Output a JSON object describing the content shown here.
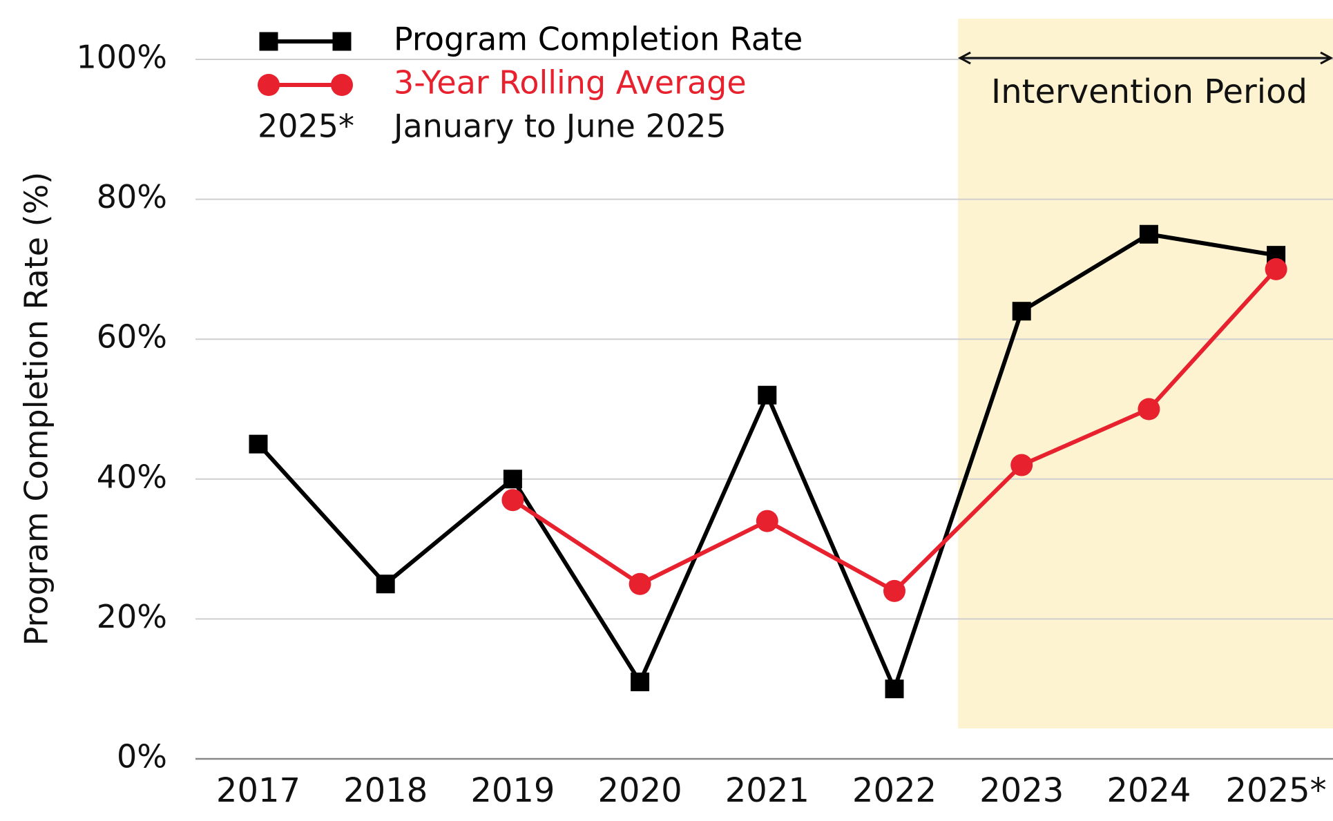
{
  "chart_data": {
    "type": "line",
    "y_label": "Program Completion Rate (%)",
    "categories": [
      "2017",
      "2018",
      "2019",
      "2020",
      "2021",
      "2022",
      "2023",
      "2024",
      "2025*"
    ],
    "series": [
      {
        "name": "Program Completion Rate",
        "color": "#000000",
        "marker": "square",
        "values": [
          45,
          25,
          40,
          11,
          52,
          10,
          64,
          75,
          72
        ]
      },
      {
        "name": "3-Year Rolling Average",
        "color": "#e8212e",
        "marker": "circle",
        "values": [
          null,
          null,
          37,
          25,
          34,
          24,
          42,
          50,
          70
        ]
      }
    ],
    "ylim": [
      0,
      100
    ],
    "yticks": [
      {
        "value": 0,
        "label": "0%"
      },
      {
        "value": 20,
        "label": "20%"
      },
      {
        "value": 40,
        "label": "40%"
      },
      {
        "value": 60,
        "label": "60%"
      },
      {
        "value": 80,
        "label": "80%"
      },
      {
        "value": 100,
        "label": "100%"
      }
    ],
    "grid": true,
    "legend_note": {
      "label": "2025*",
      "text": "January to June 2025"
    },
    "annotation": {
      "text": "Intervention Period",
      "color": "#fdf3d0"
    }
  }
}
